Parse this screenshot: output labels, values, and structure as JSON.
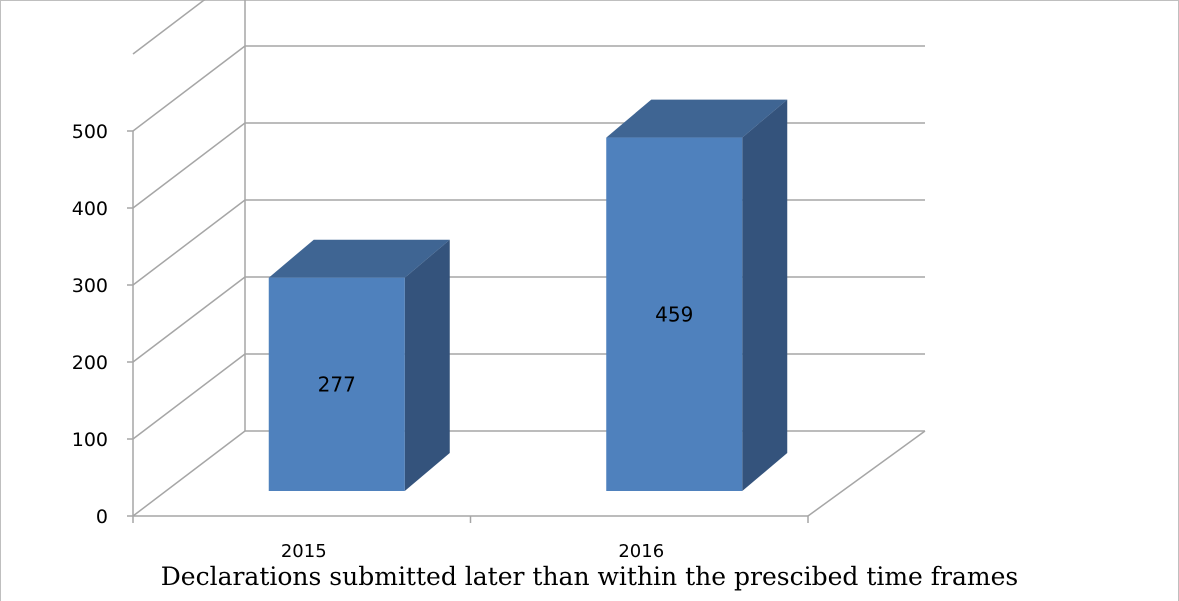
{
  "chart_data": {
    "type": "bar",
    "style": "3d-column",
    "title": "Declarations submitted later than within the prescibed time frames",
    "categories": [
      "2015",
      "2016"
    ],
    "values": [
      277,
      459
    ],
    "data_labels": [
      "277",
      "459"
    ],
    "ylim": [
      0,
      500
    ],
    "y_ticks": [
      "0",
      "100",
      "200",
      "300",
      "400",
      "500"
    ],
    "grid": true,
    "legend": "none",
    "colors": {
      "bar_front": "#4f81bd",
      "bar_side": "#34537c",
      "bar_top": "#3f6593",
      "gridline": "#a6a6a6"
    }
  }
}
